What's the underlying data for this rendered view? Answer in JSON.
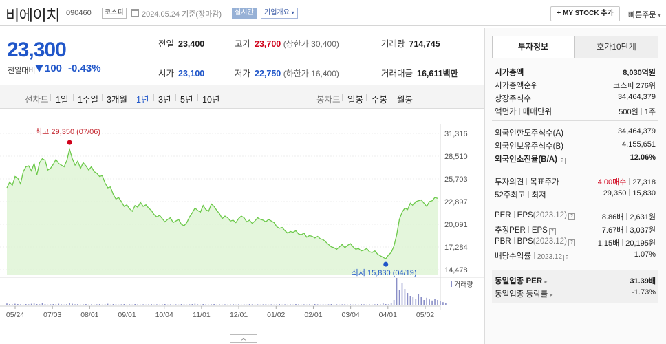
{
  "header": {
    "company_name": "비에이치",
    "code": "090460",
    "market": "코스피",
    "base_date": "2024.05.24  기준(장마감)",
    "realtime": "실시간",
    "company_info": "기업개요",
    "my_stock": "+ MY STOCK 추가",
    "quick_order": "빠른주문"
  },
  "price": {
    "current": "23,300",
    "change_label": "전일대비",
    "change": "100",
    "change_pct": "-0.43%",
    "prev_close_label": "전일",
    "prev_close": "23,400",
    "high_label": "고가",
    "high": "23,700",
    "upper_limit": "(상한가 30,400)",
    "volume_label": "거래량",
    "volume": "714,745",
    "open_label": "시가",
    "open": "23,100",
    "low_label": "저가",
    "low": "22,750",
    "lower_limit": "(하한가 16,400)",
    "amount_label": "거래대금",
    "amount": "16,611",
    "amount_unit": "백만",
    "down_color": "#2056c9",
    "up_color": "#d0021b"
  },
  "tabs": {
    "line_chart": "선차트",
    "periods": [
      "1일",
      "1주일",
      "3개월",
      "1년",
      "3년",
      "5년",
      "10년"
    ],
    "selected": "1년",
    "candle_chart": "봉차트",
    "candle_periods": [
      "일봉",
      "주봉",
      "월봉"
    ]
  },
  "chart_data": {
    "type": "area",
    "x_tick_labels": [
      "05/24",
      "07/03",
      "08/01",
      "09/01",
      "10/04",
      "11/01",
      "12/01",
      "01/02",
      "02/01",
      "03/04",
      "04/01",
      "05/02"
    ],
    "y_ticks": [
      "31,316",
      "28,510",
      "25,703",
      "22,897",
      "20,091",
      "17,284",
      "14,478"
    ],
    "ylim": [
      14478,
      31316
    ],
    "values": [
      24600,
      25300,
      24900,
      26000,
      25800,
      25100,
      26600,
      27200,
      27300,
      26700,
      27600,
      26200,
      27700,
      28200,
      28000,
      26800,
      27000,
      27500,
      28100,
      27600,
      27400,
      27200,
      28000,
      29350,
      28200,
      27400,
      27900,
      27000,
      27700,
      27300,
      26800,
      27200,
      26600,
      26400,
      26000,
      26100,
      25200,
      24600,
      24700,
      23800,
      23200,
      23400,
      22900,
      22300,
      22500,
      22000,
      21700,
      22400,
      22200,
      22800,
      22300,
      22500,
      22100,
      21800,
      21300,
      21000,
      21200,
      20800,
      20400,
      20700,
      20900,
      20300,
      20500,
      20700,
      20100,
      19900,
      20300,
      21000,
      21500,
      22100,
      21800,
      21600,
      22400,
      21900,
      21700,
      22600,
      22300,
      21800,
      21400,
      20800,
      21100,
      20900,
      20500,
      20600,
      20300,
      20800,
      21100,
      20900,
      20400,
      20600,
      20200,
      20500,
      20900,
      20700,
      20600,
      20400,
      20700,
      20500,
      20300,
      19800,
      19600,
      19700,
      19300,
      19000,
      19200,
      19100,
      19300,
      18900,
      18800,
      19000,
      18500,
      18700,
      18600,
      18400,
      18600,
      18300,
      18200,
      17900,
      17600,
      17300,
      17200,
      17000,
      17300,
      17600,
      17200,
      17500,
      17700,
      17300,
      17000,
      17100,
      16800,
      16900,
      17100,
      16700,
      16600,
      16800,
      16400,
      16200,
      16000,
      15830,
      16300,
      16600,
      17400,
      18800,
      20700,
      21600,
      22100,
      21900,
      22700,
      22400,
      22900,
      23000,
      23100,
      22700,
      22300,
      22900,
      23000,
      23400,
      23300
    ],
    "high_label": "최고 29,350 (07/06)",
    "low_label": "최저 15,830 (04/19)",
    "volume_legend": "거래량",
    "volume_values": [
      0.07,
      0.05,
      0.04,
      0.06,
      0.05,
      0.04,
      0.03,
      0.05,
      0.04,
      0.06,
      0.07,
      0.05,
      0.04,
      0.08,
      0.05,
      0.03,
      0.04,
      0.05,
      0.04,
      0.06,
      0.04,
      0.03,
      0.05,
      0.09,
      0.06,
      0.04,
      0.05,
      0.03,
      0.04,
      0.05,
      0.03,
      0.04,
      0.03,
      0.04,
      0.05,
      0.03,
      0.04,
      0.06,
      0.03,
      0.05,
      0.04,
      0.03,
      0.04,
      0.05,
      0.03,
      0.04,
      0.03,
      0.05,
      0.04,
      0.03,
      0.04,
      0.03,
      0.04,
      0.05,
      0.03,
      0.04,
      0.03,
      0.04,
      0.05,
      0.03,
      0.04,
      0.03,
      0.04,
      0.03,
      0.05,
      0.04,
      0.03,
      0.04,
      0.05,
      0.06,
      0.04,
      0.03,
      0.05,
      0.04,
      0.03,
      0.04,
      0.05,
      0.03,
      0.04,
      0.03,
      0.04,
      0.03,
      0.04,
      0.05,
      0.03,
      0.04,
      0.03,
      0.04,
      0.03,
      0.05,
      0.04,
      0.03,
      0.04,
      0.03,
      0.04,
      0.05,
      0.03,
      0.04,
      0.03,
      0.04,
      0.05,
      0.03,
      0.04,
      0.03,
      0.04,
      0.03,
      0.05,
      0.04,
      0.03,
      0.04,
      0.03,
      0.04,
      0.03,
      0.05,
      0.04,
      0.03,
      0.04,
      0.03,
      0.04,
      0.05,
      0.03,
      0.04,
      0.03,
      0.04,
      0.05,
      0.03,
      0.04,
      0.03,
      0.04,
      0.03,
      0.05,
      0.04,
      0.03,
      0.04,
      0.03,
      0.04,
      0.05,
      0.04,
      0.08,
      0.05,
      0.04,
      0.1,
      0.2,
      1.0,
      0.55,
      0.8,
      0.6,
      0.45,
      0.35,
      0.3,
      0.25,
      0.4,
      0.3,
      0.2,
      0.28,
      0.22,
      0.18,
      0.25,
      0.2,
      0.15,
      0.12,
      0.1
    ],
    "line_color": "#6cc94a",
    "fill_color": "#dff5d6",
    "high_color": "#d0021b",
    "low_color": "#2056c9",
    "collapse_glyph": "︿"
  },
  "panel": {
    "tab_active": "투자정보",
    "tab_other": "호가10단계",
    "market_cap_label": "시가총액",
    "market_cap": "8,030억원",
    "market_cap_rank_label": "시가총액순위",
    "market_cap_rank": "코스피  276위",
    "shares_label": "상장주식수",
    "shares": "34,464,379",
    "face_value_label": "액면가",
    "trade_unit_label": "매매단위",
    "face_value": "500원",
    "trade_unit": "1주",
    "foreign_limit_label": "외국인한도주식수(A)",
    "foreign_limit": "34,464,379",
    "foreign_hold_label": "외국인보유주식수(B)",
    "foreign_hold": "4,155,651",
    "foreign_rate_label": "외국인소진율(B/A)",
    "foreign_rate": "12.06%",
    "opinion_label": "투자의견",
    "target_label": "목표주가",
    "opinion": "4.00매수",
    "target": "27,318",
    "w52_high_label": "52주최고",
    "w52_low_label": "최저",
    "w52_high": "29,350",
    "w52_low": "15,830",
    "per_label": "PER",
    "eps_label": "EPS",
    "eps_year": "(2023.12)",
    "per": "8.86배",
    "eps": "2,631원",
    "est_per_label": "추정PER",
    "est_eps_label": "EPS",
    "est_per": "7.67배",
    "est_eps": "3,037원",
    "pbr_label": "PBR",
    "bps_label": "BPS",
    "bps_year": "(2023.12)",
    "pbr": "1.15배",
    "bps": "20,195원",
    "div_label": "배당수익률",
    "div_year": "2023.12",
    "div": "1.07%",
    "industry_per_label": "동일업종 PER",
    "industry_per": "31.39배",
    "industry_chg_label": "동일업종 등락률",
    "industry_chg": "-1.73%",
    "info_glyph": "?",
    "arrow_glyph": "▸"
  }
}
